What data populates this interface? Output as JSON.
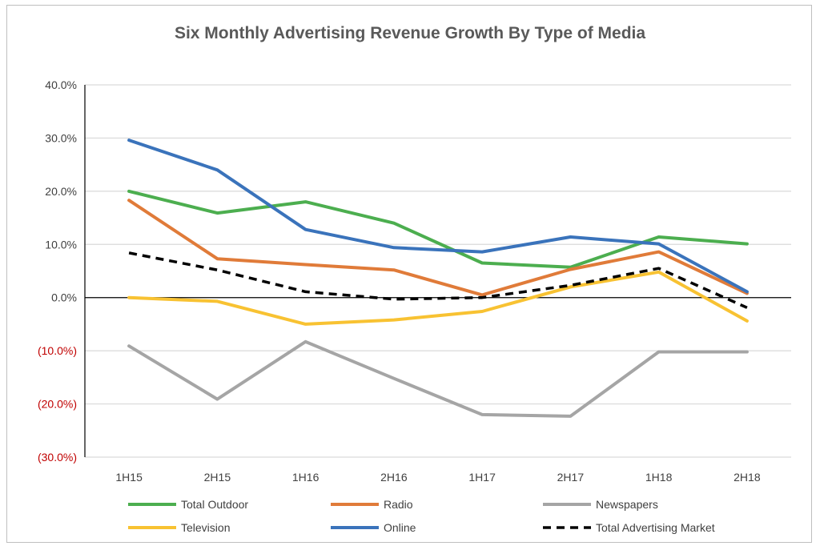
{
  "chart_data": {
    "type": "line",
    "title": "Six Monthly Advertising Revenue Growth By Type of Media",
    "xlabel": "",
    "ylabel": "",
    "categories": [
      "1H15",
      "2H15",
      "1H16",
      "2H16",
      "1H17",
      "2H17",
      "1H18",
      "2H18"
    ],
    "ylim": [
      -30,
      40
    ],
    "yticks": [
      40,
      30,
      20,
      10,
      0,
      -10,
      -20,
      -30
    ],
    "ytick_labels": [
      "40.0%",
      "30.0%",
      "20.0%",
      "10.0%",
      "0.0%",
      "(10.0%)",
      "(20.0%)",
      "(30.0%)"
    ],
    "grid": true,
    "legend_position": "bottom",
    "series": [
      {
        "name": "Total Outdoor",
        "color": "#4cae4f",
        "dashed": false,
        "values": [
          20.0,
          15.9,
          18.0,
          14.0,
          6.5,
          5.7,
          11.4,
          10.1
        ]
      },
      {
        "name": "Radio",
        "color": "#e07b39",
        "dashed": false,
        "values": [
          18.3,
          7.3,
          6.2,
          5.2,
          0.5,
          5.3,
          8.6,
          0.8
        ]
      },
      {
        "name": "Newspapers",
        "color": "#a5a5a5",
        "dashed": false,
        "values": [
          -9.1,
          -19.1,
          -8.3,
          -15.2,
          -22.0,
          -22.3,
          -10.2,
          -10.2
        ]
      },
      {
        "name": "Television",
        "color": "#f8c232",
        "dashed": false,
        "values": [
          0.0,
          -0.7,
          -5.0,
          -4.2,
          -2.6,
          2.0,
          4.8,
          -4.4
        ]
      },
      {
        "name": "Online",
        "color": "#3a73bb",
        "dashed": false,
        "values": [
          29.6,
          24.0,
          12.8,
          9.4,
          8.6,
          11.4,
          10.1,
          1.1
        ]
      },
      {
        "name": "Total Advertising Market",
        "color": "#000000",
        "dashed": true,
        "values": [
          8.4,
          5.2,
          1.1,
          -0.3,
          0.0,
          2.3,
          5.5,
          -1.9
        ]
      }
    ],
    "colors": {
      "negative_tick": "#c00000",
      "positive_tick": "#404040",
      "grid": "#d9d9d9",
      "axis": "#000000"
    }
  }
}
